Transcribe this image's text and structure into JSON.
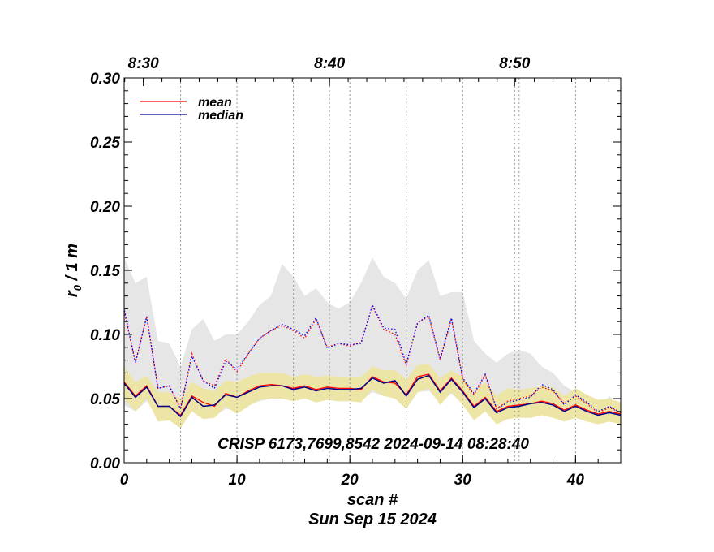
{
  "chart_data": {
    "type": "line",
    "ylabel": "r₀ / 1 m",
    "xlabel": "scan #",
    "date_label": "Sun Sep 15 2024",
    "annotation": "CRISP 6173,7699,8542 2024-09-14 08:28:40",
    "xlim": [
      0,
      44
    ],
    "ylim": [
      0.0,
      0.3
    ],
    "x_ticks": [
      {
        "value": 0,
        "label": "0"
      },
      {
        "value": 10,
        "label": "10"
      },
      {
        "value": 20,
        "label": "20"
      },
      {
        "value": 30,
        "label": "30"
      },
      {
        "value": 40,
        "label": "40"
      }
    ],
    "y_ticks": [
      {
        "value": 0.0,
        "label": "0.00"
      },
      {
        "value": 0.05,
        "label": "0.05"
      },
      {
        "value": 0.1,
        "label": "0.10"
      },
      {
        "value": 0.15,
        "label": "0.15"
      },
      {
        "value": 0.2,
        "label": "0.20"
      },
      {
        "value": 0.25,
        "label": "0.25"
      },
      {
        "value": 0.3,
        "label": "0.30"
      }
    ],
    "top_axis_ticks": [
      {
        "value": 1.7,
        "label": "8:30"
      },
      {
        "value": 18.2,
        "label": "8:40"
      },
      {
        "value": 34.6,
        "label": "8:50"
      }
    ],
    "time_gridlines": [
      5,
      10,
      15,
      18.2,
      20,
      25,
      30,
      34.6,
      35,
      40
    ],
    "legend": {
      "position": "top-left",
      "entries": [
        {
          "label": "mean",
          "color": "#ff0000"
        },
        {
          "label": "median",
          "color": "#00008b"
        }
      ]
    },
    "colors": {
      "mean": "#ff0000",
      "median": "#00008b",
      "mean_dotted": "#ff0000",
      "median_dotted": "#0000ff",
      "gray_band": "#e6e6e6",
      "yellow_band": "#ede5a6"
    },
    "x": [
      0,
      1,
      2,
      3,
      4,
      5,
      6,
      7,
      8,
      9,
      10,
      11,
      12,
      13,
      14,
      15,
      16,
      17,
      18,
      19,
      20,
      21,
      22,
      23,
      24,
      25,
      26,
      27,
      28,
      29,
      30,
      31,
      32,
      33,
      34,
      35,
      36,
      37,
      38,
      39,
      40,
      41,
      42,
      43,
      44
    ],
    "series": [
      {
        "role": "mean_low",
        "values": [
          0.063,
          0.052,
          0.06,
          0.044,
          0.044,
          0.037,
          0.052,
          0.047,
          0.044,
          0.054,
          0.051,
          0.056,
          0.06,
          0.061,
          0.06,
          0.058,
          0.06,
          0.057,
          0.059,
          0.058,
          0.058,
          0.057,
          0.067,
          0.063,
          0.062,
          0.053,
          0.067,
          0.069,
          0.056,
          0.066,
          0.056,
          0.044,
          0.051,
          0.04,
          0.044,
          0.045,
          0.046,
          0.048,
          0.046,
          0.041,
          0.045,
          0.041,
          0.038,
          0.04,
          0.038
        ]
      },
      {
        "role": "median_low",
        "values": [
          0.062,
          0.051,
          0.059,
          0.044,
          0.044,
          0.036,
          0.051,
          0.044,
          0.045,
          0.053,
          0.051,
          0.055,
          0.059,
          0.06,
          0.06,
          0.057,
          0.059,
          0.056,
          0.058,
          0.057,
          0.057,
          0.058,
          0.066,
          0.062,
          0.064,
          0.052,
          0.065,
          0.068,
          0.055,
          0.065,
          0.055,
          0.043,
          0.05,
          0.039,
          0.043,
          0.044,
          0.046,
          0.047,
          0.045,
          0.04,
          0.044,
          0.04,
          0.037,
          0.039,
          0.037
        ]
      },
      {
        "role": "mean_high",
        "values": [
          0.118,
          0.078,
          0.114,
          0.058,
          0.06,
          0.042,
          0.085,
          0.064,
          0.06,
          0.081,
          0.071,
          0.085,
          0.097,
          0.103,
          0.107,
          0.103,
          0.097,
          0.112,
          0.09,
          0.093,
          0.091,
          0.094,
          0.122,
          0.104,
          0.1,
          0.076,
          0.109,
          0.114,
          0.08,
          0.112,
          0.065,
          0.053,
          0.068,
          0.042,
          0.048,
          0.05,
          0.052,
          0.059,
          0.056,
          0.046,
          0.052,
          0.046,
          0.039,
          0.043,
          0.039
        ]
      },
      {
        "role": "median_high",
        "values": [
          0.12,
          0.078,
          0.114,
          0.058,
          0.06,
          0.042,
          0.083,
          0.064,
          0.058,
          0.079,
          0.073,
          0.085,
          0.097,
          0.103,
          0.108,
          0.104,
          0.099,
          0.113,
          0.089,
          0.093,
          0.092,
          0.093,
          0.123,
          0.105,
          0.104,
          0.077,
          0.109,
          0.115,
          0.081,
          0.113,
          0.066,
          0.054,
          0.069,
          0.042,
          0.047,
          0.049,
          0.051,
          0.061,
          0.057,
          0.045,
          0.053,
          0.047,
          0.04,
          0.044,
          0.039
        ]
      },
      {
        "role": "gray_band_upper",
        "values": [
          0.16,
          0.14,
          0.145,
          0.095,
          0.093,
          0.075,
          0.104,
          0.112,
          0.095,
          0.1,
          0.1,
          0.11,
          0.123,
          0.13,
          0.155,
          0.145,
          0.13,
          0.136,
          0.125,
          0.12,
          0.125,
          0.14,
          0.16,
          0.145,
          0.14,
          0.128,
          0.15,
          0.158,
          0.13,
          0.133,
          0.133,
          0.095,
          0.085,
          0.078,
          0.085,
          0.088,
          0.085,
          0.075,
          0.07,
          0.06,
          0.055,
          0.05,
          0.04,
          0.052,
          0.042
        ]
      },
      {
        "role": "gray_band_lower",
        "values": [
          0.045,
          0.04,
          0.048,
          0.035,
          0.035,
          0.032,
          0.04,
          0.035,
          0.036,
          0.042,
          0.04,
          0.045,
          0.048,
          0.05,
          0.05,
          0.048,
          0.05,
          0.048,
          0.049,
          0.048,
          0.048,
          0.049,
          0.055,
          0.052,
          0.052,
          0.045,
          0.055,
          0.056,
          0.047,
          0.054,
          0.046,
          0.038,
          0.042,
          0.034,
          0.037,
          0.038,
          0.038,
          0.04,
          0.038,
          0.035,
          0.037,
          0.034,
          0.033,
          0.034,
          0.033
        ]
      },
      {
        "role": "yellow_band_upper",
        "values": [
          0.075,
          0.063,
          0.068,
          0.055,
          0.055,
          0.05,
          0.063,
          0.058,
          0.056,
          0.064,
          0.063,
          0.067,
          0.07,
          0.07,
          0.07,
          0.067,
          0.069,
          0.067,
          0.068,
          0.067,
          0.067,
          0.067,
          0.075,
          0.072,
          0.072,
          0.065,
          0.076,
          0.077,
          0.066,
          0.072,
          0.067,
          0.055,
          0.063,
          0.052,
          0.058,
          0.057,
          0.058,
          0.06,
          0.059,
          0.052,
          0.058,
          0.053,
          0.049,
          0.05,
          0.047
        ]
      },
      {
        "role": "yellow_band_lower",
        "values": [
          0.05,
          0.04,
          0.05,
          0.032,
          0.033,
          0.027,
          0.04,
          0.034,
          0.035,
          0.044,
          0.038,
          0.044,
          0.049,
          0.05,
          0.05,
          0.048,
          0.05,
          0.047,
          0.049,
          0.048,
          0.048,
          0.047,
          0.057,
          0.052,
          0.05,
          0.042,
          0.055,
          0.058,
          0.045,
          0.055,
          0.045,
          0.033,
          0.04,
          0.03,
          0.034,
          0.035,
          0.035,
          0.037,
          0.035,
          0.032,
          0.035,
          0.032,
          0.03,
          0.032,
          0.03
        ]
      }
    ]
  }
}
